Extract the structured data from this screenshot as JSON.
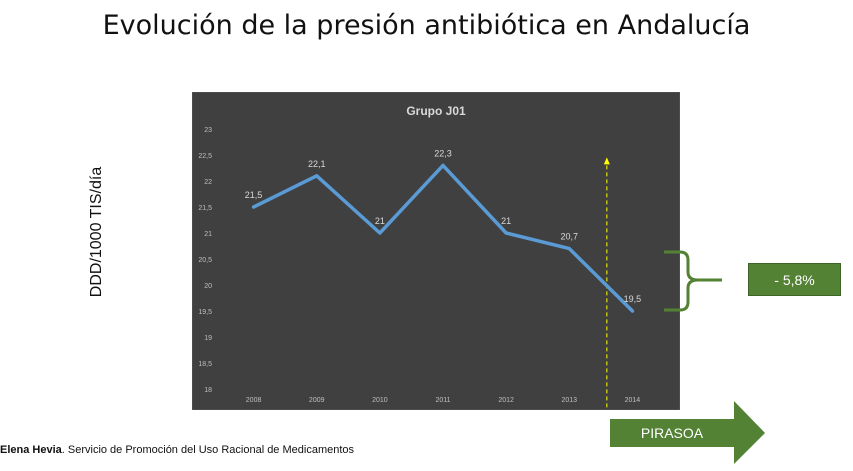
{
  "slide": {
    "title": "Evolución de la presión antibiótica en Andalucía",
    "ylabel": "DDD/1000 TIS/día"
  },
  "chart_data": {
    "type": "line",
    "title": "Grupo J01",
    "xlabel": "",
    "ylabel": "DDD/1000 TIS/día",
    "categories": [
      "2008",
      "2009",
      "2010",
      "2011",
      "2012",
      "2013",
      "2014"
    ],
    "values": [
      21.5,
      22.1,
      21,
      22.3,
      21,
      20.7,
      19.5
    ],
    "data_labels": [
      "21,5",
      "22,1",
      "21",
      "22,3",
      "21",
      "20,7",
      "19,5"
    ],
    "ylim": [
      18,
      23
    ],
    "yticks": [
      18,
      18.5,
      19,
      19.5,
      20,
      20.5,
      21,
      21.5,
      22,
      22.5,
      23
    ],
    "ytick_labels": [
      "18",
      "18,5",
      "19",
      "19,5",
      "20",
      "20,5",
      "21",
      "21,5",
      "22",
      "22,5",
      "23"
    ],
    "grid": false,
    "background": "#404040",
    "line_color": "#5b9bd5",
    "marker_line_color": "#ffff00",
    "marker_position": "between 2013 and 2014"
  },
  "annotation": {
    "change_label": "- 5,8%",
    "change_color": "#548235",
    "arrow_label": "PIRASOA",
    "arrow_color": "#548235"
  },
  "footer": {
    "author": "Elena Hevia",
    "text": ". Servicio de Promoción del Uso Racional de Medicamentos"
  }
}
